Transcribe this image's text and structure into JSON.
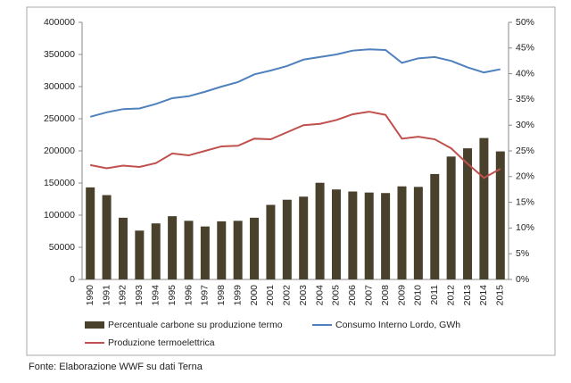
{
  "chart_data": {
    "type": "bar",
    "categories": [
      "1990",
      "1991",
      "1992",
      "1993",
      "1994",
      "1995",
      "1996",
      "1997",
      "1998",
      "1999",
      "2000",
      "2001",
      "2002",
      "2003",
      "2004",
      "2005",
      "2006",
      "2007",
      "2008",
      "2009",
      "2010",
      "2011",
      "2012",
      "2013",
      "2014",
      "2015"
    ],
    "series": [
      {
        "name": "Percentuale carbone su produzione termo",
        "type": "bar",
        "axis": "y2",
        "color": "#4a412d",
        "values": [
          17.9,
          16.4,
          12.0,
          9.5,
          10.9,
          12.3,
          11.4,
          10.3,
          11.3,
          11.4,
          12.0,
          14.5,
          15.5,
          16.1,
          18.8,
          17.5,
          17.1,
          16.9,
          16.8,
          18.1,
          18.0,
          20.5,
          23.9,
          25.5,
          27.5,
          24.9
        ]
      },
      {
        "name": "Consumo Interno Lordo, GWh",
        "type": "line",
        "color": "#4f81bd",
        "values": [
          253000,
          260000,
          265000,
          266000,
          273000,
          282000,
          285000,
          292000,
          300000,
          307000,
          319000,
          325000,
          332000,
          342000,
          346000,
          350000,
          356000,
          358000,
          357000,
          337000,
          344000,
          346000,
          340000,
          330000,
          322000,
          327000
        ]
      },
      {
        "name": "Produzione termoelettrica",
        "type": "line",
        "color": "#c0504d",
        "values": [
          178000,
          173000,
          177000,
          175000,
          181000,
          196000,
          193000,
          200000,
          207000,
          208000,
          219000,
          218000,
          229000,
          240000,
          242000,
          248000,
          257000,
          261000,
          256000,
          219000,
          222000,
          218000,
          204000,
          180000,
          158000,
          172000
        ]
      }
    ],
    "ylim": [
      0,
      400000
    ],
    "yticks": [
      0,
      50000,
      100000,
      150000,
      200000,
      250000,
      300000,
      350000,
      400000
    ],
    "y2lim": [
      0,
      50
    ],
    "y2ticks": [
      {
        "value": 0,
        "label": "0%"
      },
      {
        "value": 5,
        "label": "5%"
      },
      {
        "value": 10,
        "label": "10%"
      },
      {
        "value": 15,
        "label": "15%"
      },
      {
        "value": 20,
        "label": "20%"
      },
      {
        "value": 25,
        "label": "25%"
      },
      {
        "value": 30,
        "label": "30%"
      },
      {
        "value": 35,
        "label": "35%"
      },
      {
        "value": 40,
        "label": "40%"
      },
      {
        "value": 45,
        "label": "45%"
      },
      {
        "value": 50,
        "label": "50%"
      }
    ],
    "grid": false
  },
  "source": "Fonte: Elaborazione WWF su dati Terna"
}
